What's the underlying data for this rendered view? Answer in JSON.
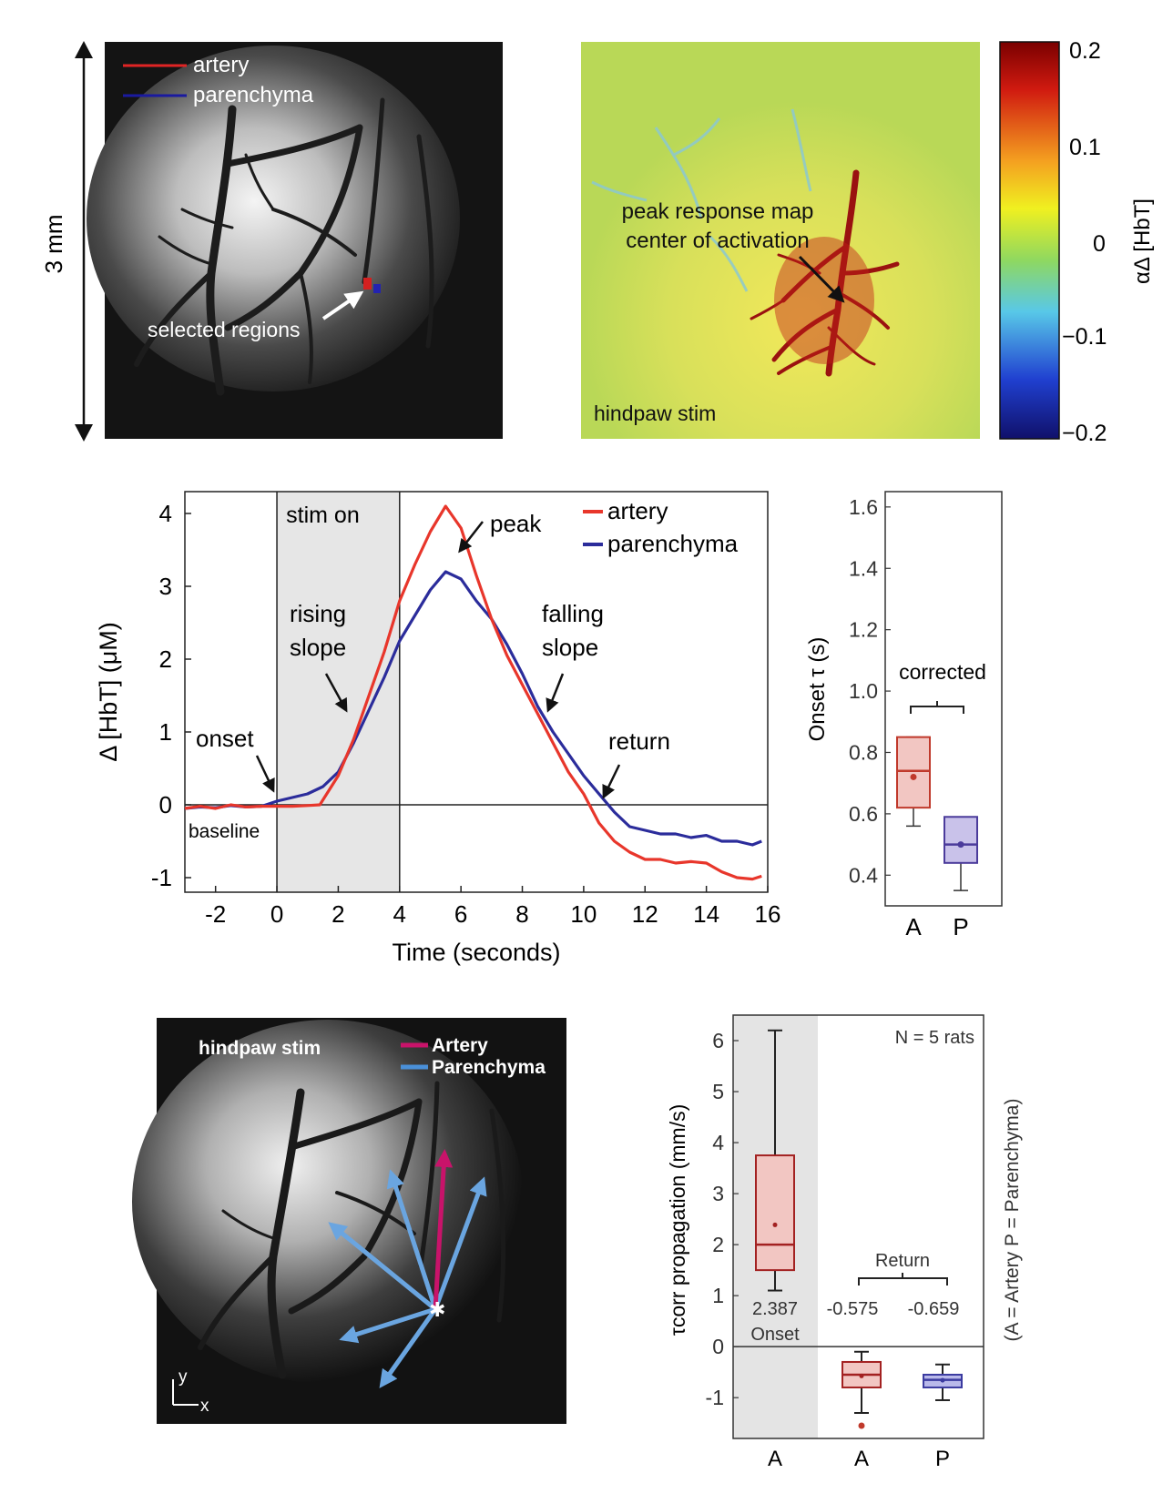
{
  "panels": {
    "scale_label": "3 mm",
    "artery_image": {
      "legend": [
        {
          "label": "artery",
          "color": "#e02424"
        },
        {
          "label": "parenchyma",
          "color": "#1a1aa0"
        }
      ],
      "annotation": "selected regions"
    },
    "peak_map": {
      "annotation_line1": "peak response map",
      "annotation_line2": "center of activation",
      "stim_label": "hindpaw stim",
      "colorbar_label": "αΔ [HbT]",
      "colorbar_ticks": [
        "0.2",
        "0.1",
        "0",
        "−0.1",
        "−0.2"
      ]
    },
    "propagation_image": {
      "stim_label": "hindpaw stim",
      "legend": [
        {
          "label": "Artery",
          "color": "#c8136a"
        },
        {
          "label": "Parenchyma",
          "color": "#4a90d9"
        }
      ],
      "axis_y": "y",
      "axis_x": "x"
    }
  },
  "chart_data": [
    {
      "type": "line",
      "xlabel": "Time (seconds)",
      "ylabel": "Δ [HbT] (μM)",
      "xlim": [
        -3,
        16
      ],
      "ylim": [
        -1.2,
        4.3
      ],
      "xticks": [
        "-2",
        "0",
        "2",
        "4",
        "6",
        "8",
        "10",
        "12",
        "14",
        "16"
      ],
      "yticks": [
        "-1",
        "0",
        "1",
        "2",
        "3",
        "4"
      ],
      "stim_window": [
        0,
        4
      ],
      "stim_label": "stim on",
      "legend_position": "top-right",
      "series": [
        {
          "name": "artery",
          "color": "#e8362b",
          "x": [
            -3,
            -2.5,
            -2,
            -1.5,
            -1,
            -0.5,
            0,
            0.5,
            1,
            1.4,
            2,
            2.5,
            3,
            3.5,
            4,
            4.5,
            5,
            5.5,
            6,
            6.5,
            7,
            7.5,
            8,
            8.5,
            9,
            9.5,
            10,
            10.5,
            11,
            11.5,
            12,
            12.5,
            13,
            13.5,
            14,
            14.5,
            15,
            15.5,
            15.8
          ],
          "y": [
            -0.05,
            -0.02,
            -0.05,
            0.0,
            -0.03,
            -0.02,
            -0.02,
            -0.02,
            -0.01,
            0.0,
            0.4,
            0.9,
            1.5,
            2.1,
            2.8,
            3.3,
            3.75,
            4.1,
            3.8,
            3.15,
            2.55,
            2.05,
            1.65,
            1.25,
            0.85,
            0.45,
            0.15,
            -0.25,
            -0.5,
            -0.65,
            -0.75,
            -0.75,
            -0.8,
            -0.78,
            -0.8,
            -0.92,
            -1.0,
            -1.02,
            -0.98
          ]
        },
        {
          "name": "parenchyma",
          "color": "#2b2c9b",
          "x": [
            -3,
            -2.5,
            -2,
            -1.5,
            -1,
            -0.5,
            0,
            0.5,
            1,
            1.5,
            2,
            2.5,
            3,
            3.5,
            4,
            4.5,
            5,
            5.5,
            6,
            6.5,
            7,
            7.5,
            8,
            8.5,
            9,
            9.5,
            10,
            10.5,
            11,
            11.5,
            12,
            12.5,
            13,
            13.5,
            14,
            14.5,
            15,
            15.5,
            15.8
          ],
          "y": [
            -0.05,
            -0.03,
            -0.04,
            -0.01,
            -0.03,
            -0.02,
            0.05,
            0.1,
            0.15,
            0.25,
            0.45,
            0.85,
            1.3,
            1.75,
            2.25,
            2.6,
            2.95,
            3.2,
            3.1,
            2.8,
            2.55,
            2.2,
            1.8,
            1.35,
            1.0,
            0.7,
            0.4,
            0.15,
            -0.1,
            -0.3,
            -0.35,
            -0.4,
            -0.4,
            -0.45,
            -0.42,
            -0.5,
            -0.5,
            -0.55,
            -0.5
          ]
        }
      ],
      "annotations": [
        {
          "text": "onset"
        },
        {
          "text": "baseline"
        },
        {
          "text": "rising"
        },
        {
          "text": "slope"
        },
        {
          "text": "peak"
        },
        {
          "text": "falling"
        },
        {
          "text": "slope"
        },
        {
          "text": "return"
        }
      ]
    },
    {
      "type": "box",
      "ylabel": "Onset τ (s)",
      "ylim": [
        0.3,
        1.65
      ],
      "yticks": [
        "0.4",
        "0.6",
        "0.8",
        "1.0",
        "1.2",
        "1.4",
        "1.6"
      ],
      "categories": [
        "A",
        "P"
      ],
      "bracket_label": "corrected",
      "boxes": [
        {
          "category": "A",
          "color": "#c0392b",
          "fill": "#f2c6c2",
          "min": 0.56,
          "q1": 0.62,
          "median": 0.74,
          "q3": 0.85,
          "max": 0.85,
          "mean": 0.72
        },
        {
          "category": "P",
          "color": "#4b3b9b",
          "fill": "#c9c2ea",
          "min": 0.35,
          "q1": 0.44,
          "median": 0.5,
          "q3": 0.59,
          "max": 0.59,
          "mean": 0.5
        }
      ]
    },
    {
      "type": "box",
      "ylabel": "τcorr propagation (mm/s)",
      "ylim": [
        -1.8,
        6.5
      ],
      "yticks": [
        "-1",
        "0",
        "1",
        "2",
        "3",
        "4",
        "5",
        "6"
      ],
      "categories": [
        "A",
        "A",
        "P"
      ],
      "note": "N = 5 rats",
      "side_label": "(A = Artery         P = Parenchyma)",
      "group_labels": {
        "onset": "Onset",
        "return": "Return"
      },
      "mean_labels": [
        "2.387",
        "-0.575",
        "-0.659"
      ],
      "boxes": [
        {
          "category": "A",
          "group": "onset",
          "color": "#a32121",
          "fill": "#f2c6c2",
          "min": 1.1,
          "q1": 1.5,
          "median": 2.0,
          "q3": 3.75,
          "max": 6.2,
          "mean": 2.387
        },
        {
          "category": "A",
          "group": "return",
          "color": "#a32121",
          "fill": "#f2c6c2",
          "min": -1.3,
          "q1": -0.8,
          "median": -0.55,
          "q3": -0.3,
          "max": -0.1,
          "mean": -0.575,
          "outliers": [
            -1.55
          ]
        },
        {
          "category": "P",
          "group": "return",
          "color": "#3b3ba0",
          "fill": "#b9b9ea",
          "min": -1.05,
          "q1": -0.8,
          "median": -0.65,
          "q3": -0.55,
          "max": -0.35,
          "mean": -0.659
        }
      ]
    }
  ]
}
